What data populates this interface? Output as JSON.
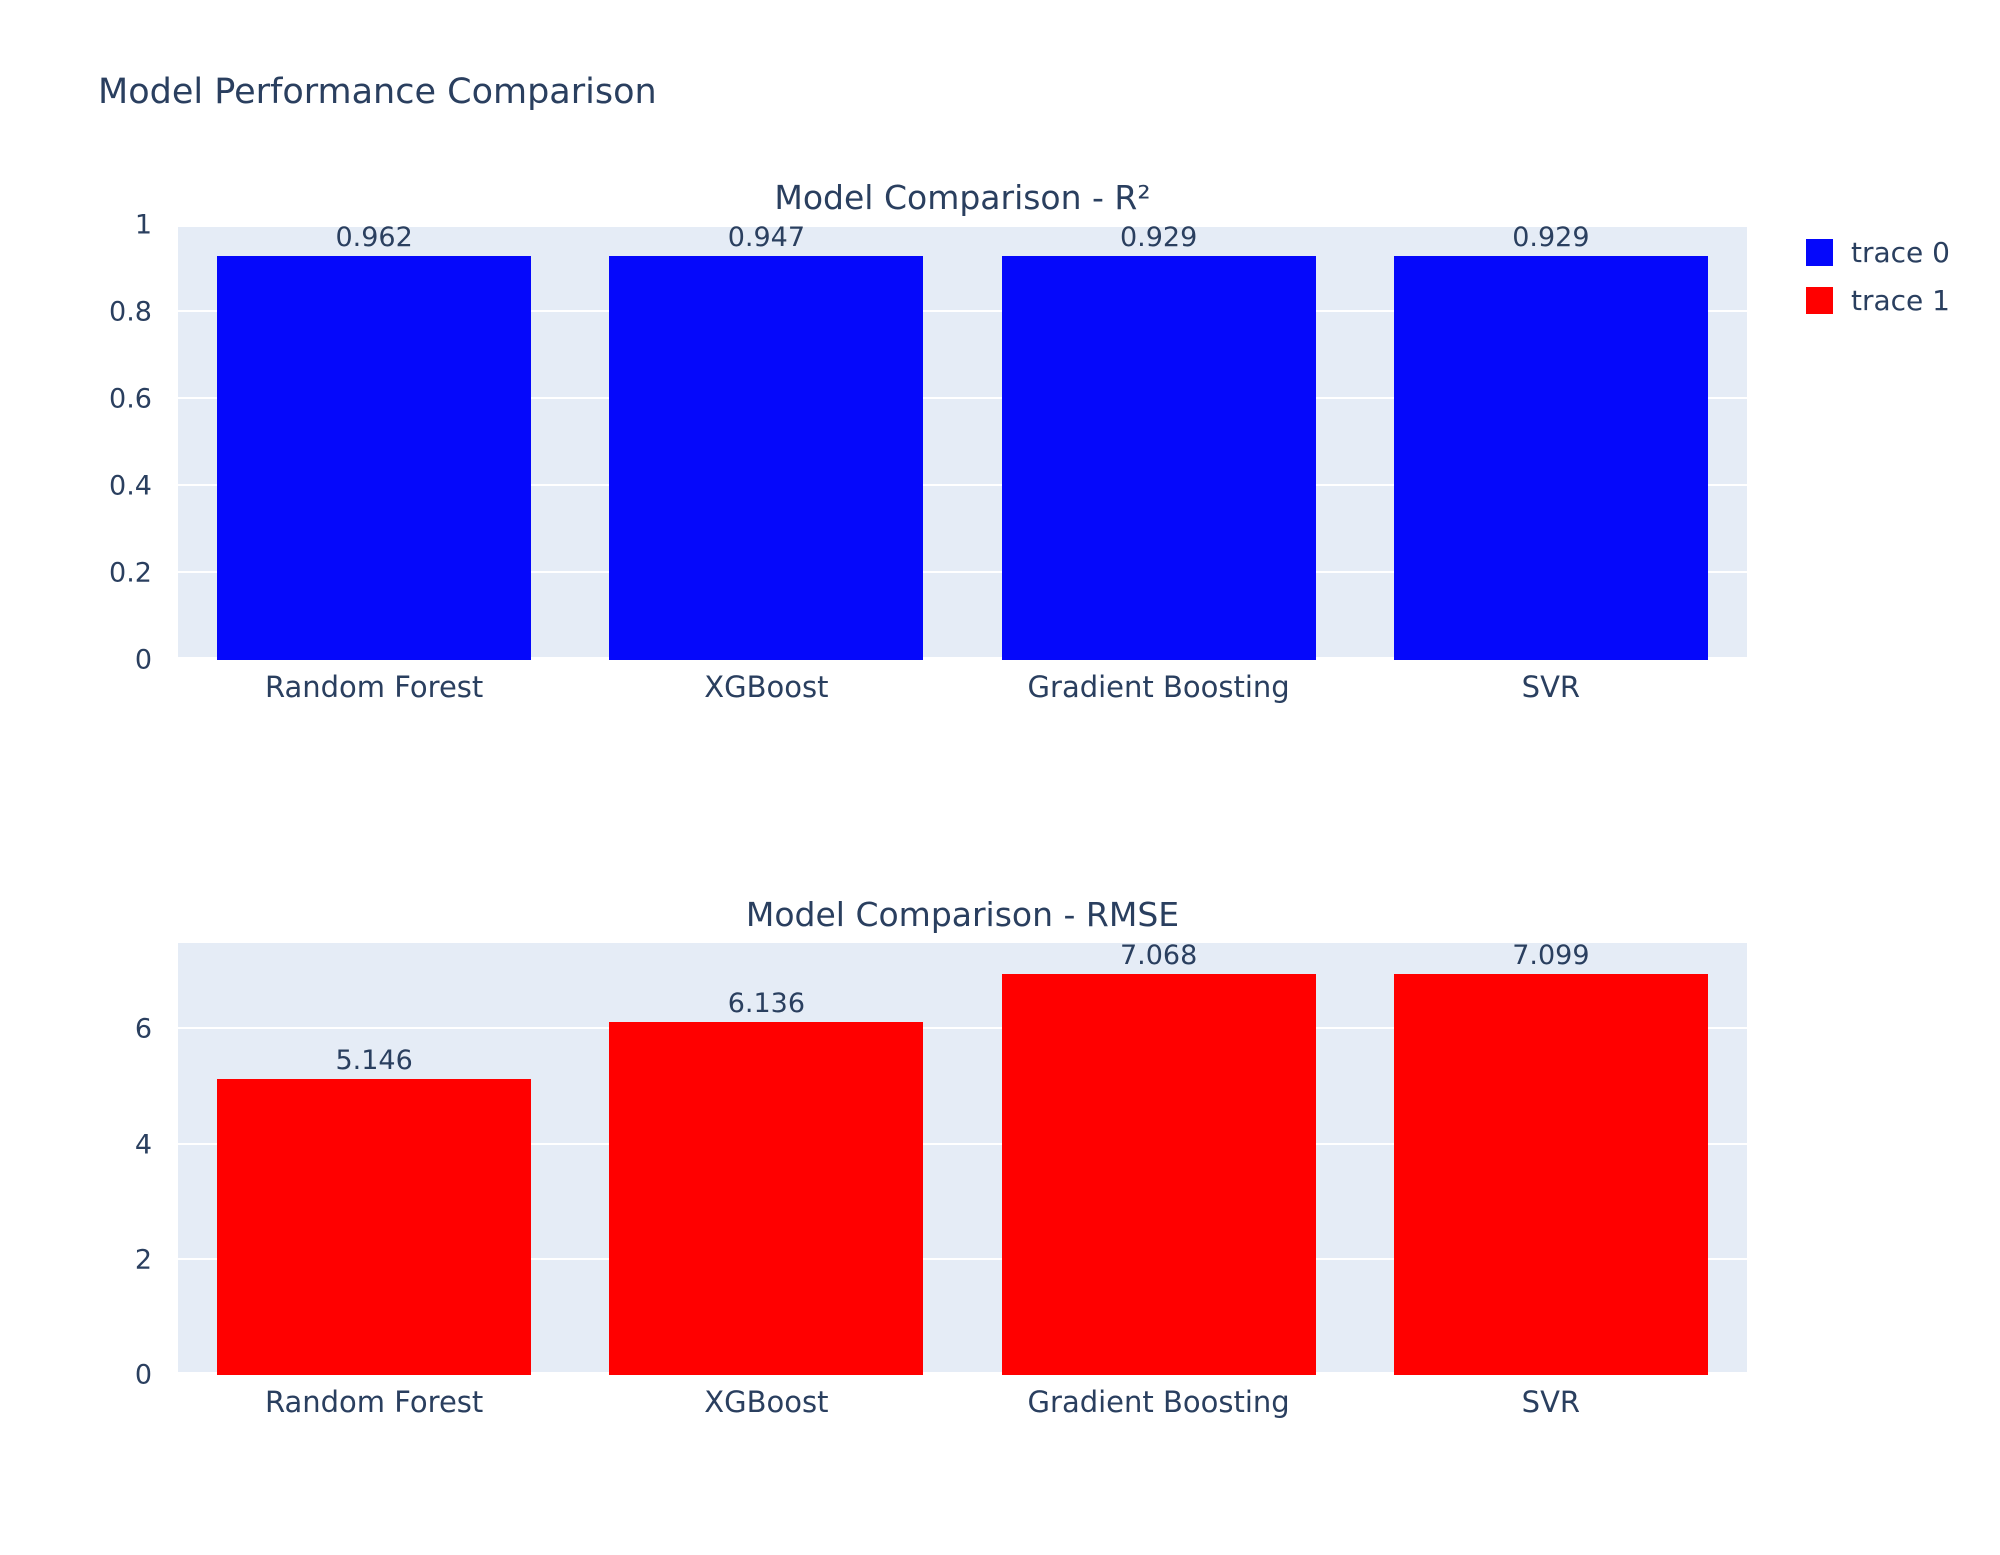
{
  "page": {
    "title": "Model Performance Comparison"
  },
  "legend": {
    "items": [
      {
        "label": "trace 0",
        "color": "#0508fb"
      },
      {
        "label": "trace 1",
        "color": "#ff0000"
      }
    ]
  },
  "colors": {
    "plot_background": "#e5ecf6",
    "text": "#2a3f5f",
    "trace0": "#0508fb",
    "trace1": "#ff0000"
  },
  "chart_data": [
    {
      "type": "bar",
      "title": "Model Comparison - R²",
      "categories": [
        "Random Forest",
        "XGBoost",
        "Gradient Boosting",
        "SVR"
      ],
      "values": [
        0.962,
        0.947,
        0.929,
        0.929
      ],
      "labels": [
        "0.962",
        "0.947",
        "0.929",
        "0.929"
      ],
      "bar_color": "#0508fb",
      "xlabel": "",
      "ylabel": "",
      "ylim": [
        0,
        1
      ],
      "yticks": [
        "1",
        "0.8",
        "0.6",
        "0.4",
        "0.2",
        "0"
      ],
      "grid": true,
      "legend_entry": "trace 0"
    },
    {
      "type": "bar",
      "title": "Model Comparison - RMSE",
      "categories": [
        "Random Forest",
        "XGBoost",
        "Gradient Boosting",
        "SVR"
      ],
      "values": [
        5.146,
        6.136,
        7.068,
        7.099
      ],
      "labels": [
        "5.146",
        "6.136",
        "7.068",
        "7.099"
      ],
      "bar_color": "#ff0000",
      "xlabel": "",
      "ylabel": "",
      "ylim": [
        0,
        7.5
      ],
      "yticks": [
        "6",
        "4",
        "2",
        "0"
      ],
      "grid": true,
      "legend_entry": "trace 1"
    }
  ]
}
